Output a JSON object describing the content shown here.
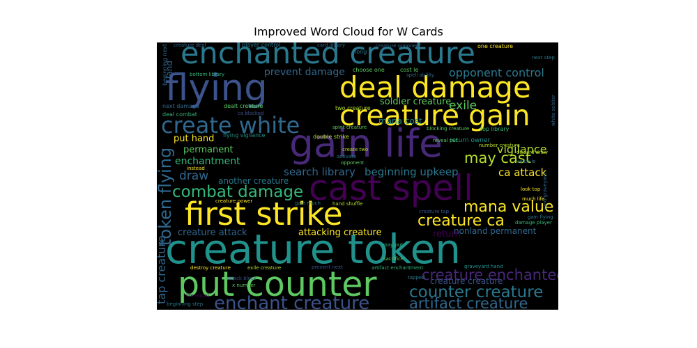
{
  "title": "Improved Word Cloud for W Cards",
  "colors": {
    "background": "#000000"
  },
  "chart_data": {
    "type": "wordcloud",
    "title": "Improved Word Cloud for W Cards",
    "words": [
      {
        "text": "creature token",
        "weight": 1.0,
        "color": "#21918c"
      },
      {
        "text": "gain life",
        "weight": 0.95,
        "color": "#482878"
      },
      {
        "text": "flying",
        "weight": 0.92,
        "color": "#3b528b"
      },
      {
        "text": "cast spell",
        "weight": 0.86,
        "color": "#440154"
      },
      {
        "text": "put counter",
        "weight": 0.85,
        "color": "#5ec962"
      },
      {
        "text": "first strike",
        "weight": 0.78,
        "color": "#fde725"
      },
      {
        "text": "enchanted creature",
        "weight": 0.74,
        "color": "#2a788e"
      },
      {
        "text": "deal damage",
        "weight": 0.73,
        "color": "#fde725"
      },
      {
        "text": "creature gain",
        "weight": 0.7,
        "color": "#fde725"
      },
      {
        "text": "create white",
        "weight": 0.56,
        "color": "#31688e"
      },
      {
        "text": "enchant creature",
        "weight": 0.45,
        "color": "#3b528b"
      },
      {
        "text": "counter creature",
        "weight": 0.4,
        "color": "#2a788e"
      },
      {
        "text": "creature enchanted",
        "weight": 0.36,
        "color": "#482878"
      },
      {
        "text": "token flying",
        "weight": 0.42,
        "color": "#31688e"
      },
      {
        "text": "combat damage",
        "weight": 0.4,
        "color": "#35b779"
      },
      {
        "text": "mana value",
        "weight": 0.38,
        "color": "#fde725"
      },
      {
        "text": "creature ca",
        "weight": 0.38,
        "color": "#fde725"
      },
      {
        "text": "artifact creature",
        "weight": 0.36,
        "color": "#31688e"
      },
      {
        "text": "may cast",
        "weight": 0.36,
        "color": "#b5de2b"
      },
      {
        "text": "exile",
        "weight": 0.3,
        "color": "#5ec962"
      },
      {
        "text": "opponent control",
        "weight": 0.28,
        "color": "#2a788e"
      },
      {
        "text": "draw",
        "weight": 0.3,
        "color": "#31688e"
      },
      {
        "text": "tap creature",
        "weight": 0.28,
        "color": "#31688e"
      },
      {
        "text": "vigilance",
        "weight": 0.27,
        "color": "#b5de2b"
      },
      {
        "text": "ca attack",
        "weight": 0.26,
        "color": "#fde725"
      },
      {
        "text": "beginning upkeep",
        "weight": 0.25,
        "color": "#2a788e"
      },
      {
        "text": "search library",
        "weight": 0.25,
        "color": "#31688e"
      },
      {
        "text": "enchantment",
        "weight": 0.24,
        "color": "#35b779"
      },
      {
        "text": "permanent",
        "weight": 0.23,
        "color": "#5ec962"
      },
      {
        "text": "put hand",
        "weight": 0.23,
        "color": "#fde725"
      },
      {
        "text": "prevent damage",
        "weight": 0.24,
        "color": "#31688e"
      },
      {
        "text": "soldier creature",
        "weight": 0.22,
        "color": "#5ec962"
      },
      {
        "text": "creature attack",
        "weight": 0.22,
        "color": "#31688e"
      },
      {
        "text": "attacking creature",
        "weight": 0.22,
        "color": "#fde725"
      },
      {
        "text": "nonland permanent",
        "weight": 0.2,
        "color": "#31688e"
      },
      {
        "text": "return",
        "weight": 0.22,
        "color": "#440154"
      },
      {
        "text": "another creature",
        "weight": 0.2,
        "color": "#2a788e"
      },
      {
        "text": "mana cost",
        "weight": 0.2,
        "color": "#21918c"
      },
      {
        "text": "creature creature",
        "weight": 0.2,
        "color": "#3b528b"
      },
      {
        "text": "land",
        "weight": 0.2,
        "color": "#31688e"
      },
      {
        "text": "return owner",
        "weight": 0.16,
        "color": "#21918c"
      },
      {
        "text": "creature deal",
        "weight": 0.12,
        "color": "#31688e"
      },
      {
        "text": "player control",
        "weight": 0.14,
        "color": "#2a788e"
      },
      {
        "text": "card library",
        "weight": 0.1,
        "color": "#31688e"
      },
      {
        "text": "creature opponent",
        "weight": 0.12,
        "color": "#31688e"
      },
      {
        "text": "one creature",
        "weight": 0.13,
        "color": "#fde725"
      },
      {
        "text": "next step",
        "weight": 0.1,
        "color": "#2a788e"
      },
      {
        "text": "beginning next",
        "weight": 0.13,
        "color": "#31688e"
      },
      {
        "text": "long",
        "weight": 0.13,
        "color": "#2a788e"
      },
      {
        "text": "choose one",
        "weight": 0.14,
        "color": "#5ec962"
      },
      {
        "text": "cost le",
        "weight": 0.14,
        "color": "#5ec962"
      },
      {
        "text": "bottom library",
        "weight": 0.12,
        "color": "#35b779"
      },
      {
        "text": "spell ability",
        "weight": 0.1,
        "color": "#31688e"
      },
      {
        "text": "next damage",
        "weight": 0.13,
        "color": "#31688e"
      },
      {
        "text": "dealt creature",
        "weight": 0.13,
        "color": "#5ec962"
      },
      {
        "text": "two creature",
        "weight": 0.13,
        "color": "#b5de2b"
      },
      {
        "text": "deal combat",
        "weight": 0.13,
        "color": "#35b779"
      },
      {
        "text": "ca blocked",
        "weight": 0.12,
        "color": "#3b528b"
      },
      {
        "text": "spirit creature",
        "weight": 0.12,
        "color": "#5ec962"
      },
      {
        "text": "blocking creature",
        "weight": 0.12,
        "color": "#5ec962"
      },
      {
        "text": "top library",
        "weight": 0.13,
        "color": "#35b779"
      },
      {
        "text": "white soldier",
        "weight": 0.1,
        "color": "#31688e"
      },
      {
        "text": "flying vigilance",
        "weight": 0.13,
        "color": "#21918c"
      },
      {
        "text": "double strike",
        "weight": 0.14,
        "color": "#b5de2b"
      },
      {
        "text": "reveal put",
        "weight": 0.1,
        "color": "#5ec962"
      },
      {
        "text": "card graveyard",
        "weight": 0.1,
        "color": "#31688e"
      },
      {
        "text": "create two",
        "weight": 0.11,
        "color": "#b5de2b"
      },
      {
        "text": "activate",
        "weight": 0.1,
        "color": "#2a788e"
      },
      {
        "text": "opponent",
        "weight": 0.1,
        "color": "#5ec962"
      },
      {
        "text": "number creature",
        "weight": 0.1,
        "color": "#b5de2b"
      },
      {
        "text": "discard draw",
        "weight": 0.1,
        "color": "#b5de2b"
      },
      {
        "text": "instead",
        "weight": 0.1,
        "color": "#fde725"
      },
      {
        "text": "value le",
        "weight": 0.11,
        "color": "#2a788e"
      },
      {
        "text": "look top",
        "weight": 0.11,
        "color": "#fde725"
      },
      {
        "text": "much life",
        "weight": 0.12,
        "color": "#fde725"
      },
      {
        "text": "creature power",
        "weight": 0.11,
        "color": "#fde725"
      },
      {
        "text": "gain much",
        "weight": 0.1,
        "color": "#2a788e"
      },
      {
        "text": "hand shuffle",
        "weight": 0.1,
        "color": "#b5de2b"
      },
      {
        "text": "creature tap",
        "weight": 0.09,
        "color": "#3b528b"
      },
      {
        "text": "gain flying",
        "weight": 0.09,
        "color": "#2a788e"
      },
      {
        "text": "damage player",
        "weight": 0.1,
        "color": "#35b779"
      },
      {
        "text": "may put",
        "weight": 0.12,
        "color": "#35b779"
      },
      {
        "text": "sacrifice",
        "weight": 0.12,
        "color": "#5ec962"
      },
      {
        "text": "destroy creature",
        "weight": 0.12,
        "color": "#fde725"
      },
      {
        "text": "exile creature",
        "weight": 0.12,
        "color": "#b5de2b"
      },
      {
        "text": "prevent next",
        "weight": 0.11,
        "color": "#3b528b"
      },
      {
        "text": "artifact enchantment",
        "weight": 0.11,
        "color": "#35b779"
      },
      {
        "text": "graveyard hand",
        "weight": 0.1,
        "color": "#21918c"
      },
      {
        "text": "attack block",
        "weight": 0.09,
        "color": "#3b528b"
      },
      {
        "text": "x number",
        "weight": 0.09,
        "color": "#5ec962"
      },
      {
        "text": "tapped",
        "weight": 0.11,
        "color": "#2a788e"
      },
      {
        "text": "beginning step",
        "weight": 0.1,
        "color": "#2a788e"
      },
      {
        "text": "life equal",
        "weight": 0.08,
        "color": "#440154"
      }
    ]
  }
}
